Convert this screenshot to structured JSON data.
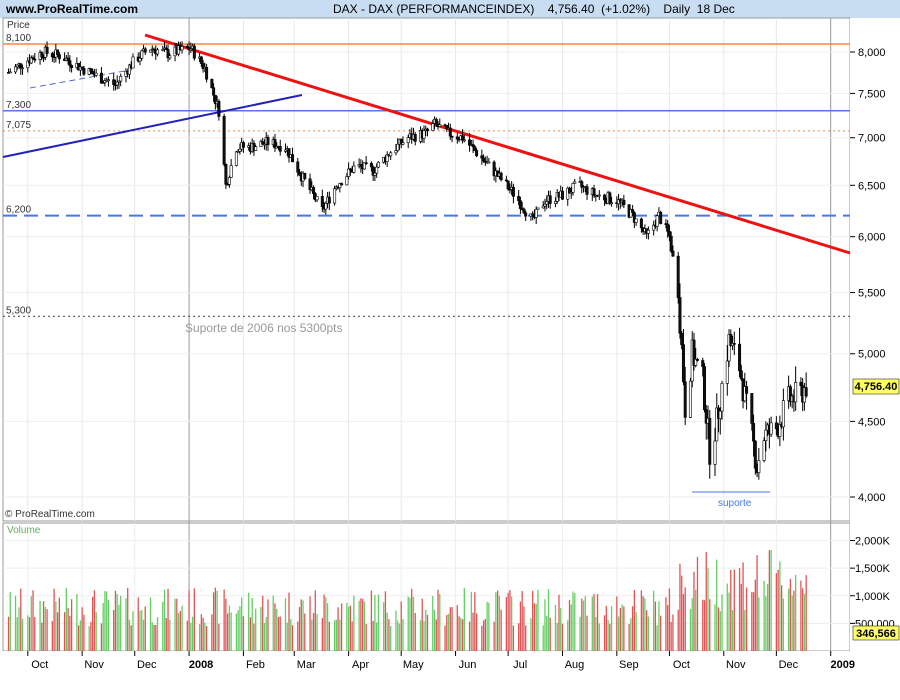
{
  "header": {
    "site": "www.ProRealTime.com",
    "title": "DAX - DAX (PERFORMANCEINDEX)    4,756.40  (+1.02%)    Daily  18 Dec"
  },
  "price_panel": {
    "label": "Price",
    "copyright": "© ProRealTime.com",
    "current_price_label": "4,756.40"
  },
  "volume_panel": {
    "label": "Volume",
    "current_volume_label": "346,566"
  },
  "annotations": {
    "support_2006": "Suporte de 2006 nos 5300pts",
    "suporte": "suporte"
  },
  "horizontal_levels": [
    {
      "label": "8,100",
      "value": 8100,
      "color": "#ff8040",
      "style": "solid"
    },
    {
      "label": "7,300",
      "value": 7300,
      "color": "#5577e8",
      "style": "solid"
    },
    {
      "label": "7,075",
      "value": 7075,
      "color": "#e8a070",
      "style": "dotted"
    },
    {
      "label": "6,200",
      "value": 6200,
      "color": "#4477ee",
      "style": "dashed"
    },
    {
      "label": "5,300",
      "value": 5300,
      "color": "#555555",
      "style": "dotted"
    }
  ],
  "colors": {
    "header_bg": "#c8ddf2",
    "trendline_down": "#ee1111",
    "trendline_up": "#2222bb",
    "volume_up": "#66cc66",
    "volume_down": "#dd5555",
    "candle_up": "#ffffff",
    "candle_down": "#111111"
  },
  "chart_data": {
    "type": "candlestick",
    "title": "DAX - DAX (PERFORMANCEINDEX)",
    "last_value": 4756.4,
    "change_percent": 1.02,
    "y_axis": {
      "scale": "log",
      "ticks": [
        {
          "value": 8000,
          "label": "8,000"
        },
        {
          "value": 7500,
          "label": "7,500"
        },
        {
          "value": 7000,
          "label": "7,000"
        },
        {
          "value": 6500,
          "label": "6,500"
        },
        {
          "value": 6000,
          "label": "6,000"
        },
        {
          "value": 5500,
          "label": "5,500"
        },
        {
          "value": 5000,
          "label": "5,000"
        },
        {
          "value": 4500,
          "label": "4,500"
        },
        {
          "value": 4000,
          "label": "4,000"
        }
      ]
    },
    "x_axis": {
      "ticks": [
        {
          "date": "2007-10-01",
          "label": "Oct"
        },
        {
          "date": "2007-11-01",
          "label": "Nov"
        },
        {
          "date": "2007-12-01",
          "label": "Dec"
        },
        {
          "date": "2008-01-01",
          "label": "2008",
          "bold": true
        },
        {
          "date": "2008-02-01",
          "label": "Feb"
        },
        {
          "date": "2008-03-01",
          "label": "Mar"
        },
        {
          "date": "2008-04-01",
          "label": "Apr"
        },
        {
          "date": "2008-05-01",
          "label": "May"
        },
        {
          "date": "2008-06-01",
          "label": "Jun"
        },
        {
          "date": "2008-07-01",
          "label": "Jul"
        },
        {
          "date": "2008-08-01",
          "label": "Aug"
        },
        {
          "date": "2008-09-01",
          "label": "Sep"
        },
        {
          "date": "2008-10-01",
          "label": "Oct"
        },
        {
          "date": "2008-11-01",
          "label": "Nov"
        },
        {
          "date": "2008-12-01",
          "label": "Dec"
        },
        {
          "date": "2009-01-01",
          "label": "2009",
          "bold": true
        }
      ]
    },
    "price_path": [
      [
        "2007-09-20",
        7750
      ],
      [
        "2007-10-01",
        7900
      ],
      [
        "2007-10-10",
        8000
      ],
      [
        "2007-10-20",
        7950
      ],
      [
        "2007-11-01",
        7800
      ],
      [
        "2007-11-10",
        7700
      ],
      [
        "2007-11-20",
        7600
      ],
      [
        "2007-12-01",
        7900
      ],
      [
        "2007-12-10",
        8050
      ],
      [
        "2007-12-20",
        7980
      ],
      [
        "2008-01-02",
        8050
      ],
      [
        "2008-01-10",
        7800
      ],
      [
        "2008-01-18",
        7300
      ],
      [
        "2008-01-22",
        6500
      ],
      [
        "2008-01-28",
        6900
      ],
      [
        "2008-02-05",
        6900
      ],
      [
        "2008-02-15",
        6950
      ],
      [
        "2008-02-25",
        6900
      ],
      [
        "2008-03-05",
        6600
      ],
      [
        "2008-03-17",
        6250
      ],
      [
        "2008-03-25",
        6500
      ],
      [
        "2008-04-05",
        6700
      ],
      [
        "2008-04-15",
        6650
      ],
      [
        "2008-04-25",
        6850
      ],
      [
        "2008-05-05",
        7000
      ],
      [
        "2008-05-15",
        7050
      ],
      [
        "2008-05-20",
        7150
      ],
      [
        "2008-05-28",
        7050
      ],
      [
        "2008-06-05",
        7000
      ],
      [
        "2008-06-15",
        6800
      ],
      [
        "2008-06-25",
        6600
      ],
      [
        "2008-07-05",
        6400
      ],
      [
        "2008-07-15",
        6150
      ],
      [
        "2008-07-22",
        6350
      ],
      [
        "2008-08-01",
        6400
      ],
      [
        "2008-08-10",
        6500
      ],
      [
        "2008-08-20",
        6400
      ],
      [
        "2008-09-01",
        6350
      ],
      [
        "2008-09-10",
        6200
      ],
      [
        "2008-09-18",
        6000
      ],
      [
        "2008-09-25",
        6200
      ],
      [
        "2008-10-01",
        6000
      ],
      [
        "2008-10-06",
        5500
      ],
      [
        "2008-10-10",
        4600
      ],
      [
        "2008-10-14",
        5000
      ],
      [
        "2008-10-20",
        4800
      ],
      [
        "2008-10-24",
        4300
      ],
      [
        "2008-10-28",
        4500
      ],
      [
        "2008-11-04",
        5100
      ],
      [
        "2008-11-10",
        4900
      ],
      [
        "2008-11-14",
        4600
      ],
      [
        "2008-11-20",
        4200
      ],
      [
        "2008-11-24",
        4400
      ],
      [
        "2008-12-01",
        4450
      ],
      [
        "2008-12-08",
        4650
      ],
      [
        "2008-12-15",
        4700
      ],
      [
        "2008-12-18",
        4756.4
      ]
    ],
    "volume_axis": {
      "ticks": [
        {
          "value": 2000000,
          "label": "2,000K"
        },
        {
          "value": 1500000,
          "label": "1,500K"
        },
        {
          "value": 1000000,
          "label": "1,000K"
        },
        {
          "value": 500000,
          "label": "500,000"
        }
      ],
      "last_value": 346566
    }
  }
}
